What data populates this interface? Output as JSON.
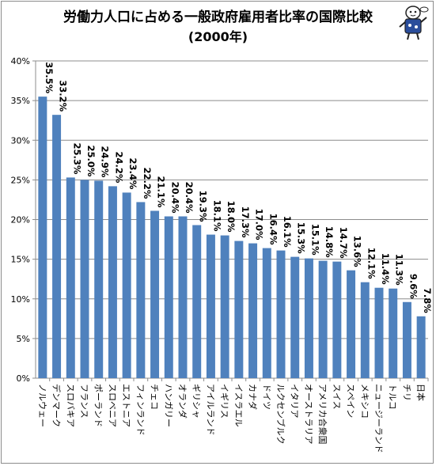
{
  "chart_data": {
    "type": "bar",
    "title": "労働力人口に占める一般政府雇用者比率の国際比較",
    "subtitle": "(2000年)",
    "xlabel": "",
    "ylabel": "",
    "ylim": [
      0,
      40
    ],
    "yticks": [
      "0%",
      "5%",
      "10%",
      "15%",
      "20%",
      "25%",
      "30%",
      "35%",
      "40%"
    ],
    "grid": true,
    "legend": "none",
    "bar_color": "#4f81bd",
    "categories": [
      "ノルウェー",
      "デンマーク",
      "スロバキア",
      "フランス",
      "ポーランド",
      "スロベニア",
      "エストニア",
      "フィンランド",
      "チェコ",
      "ハンガリー",
      "オランダ",
      "ギリシャ",
      "アイルランド",
      "イギリス",
      "イスラエル",
      "カナダ",
      "ドイツ",
      "ルクセンブルク",
      "イタリア",
      "オーストラリア",
      "アメリカ合衆国",
      "スイス",
      "スペイン",
      "メキシコ",
      "ニュージーランド",
      "トルコ",
      "チリ",
      "日本"
    ],
    "values": [
      35.5,
      33.2,
      25.3,
      25.0,
      24.9,
      24.2,
      23.4,
      22.2,
      21.1,
      20.4,
      20.4,
      19.3,
      18.1,
      18.0,
      17.3,
      17.0,
      16.4,
      16.1,
      15.3,
      15.1,
      14.8,
      14.7,
      13.6,
      12.1,
      11.4,
      11.3,
      9.6,
      7.8
    ],
    "labels": [
      "35.5%",
      "33.2%",
      "25.3%",
      "25.0%",
      "24.9%",
      "24.2%",
      "23.4%",
      "22.2%",
      "21.1%",
      "20.4%",
      "20.4%",
      "19.3%",
      "18.1%",
      "18.0%",
      "17.3%",
      "17.0%",
      "16.4%",
      "16.1%",
      "15.3%",
      "15.1%",
      "14.8%",
      "14.7%",
      "13.6%",
      "12.1%",
      "11.4%",
      "11.3%",
      "9.6%",
      "7.8%"
    ]
  },
  "mascot_icon": "mascot-character-icon"
}
